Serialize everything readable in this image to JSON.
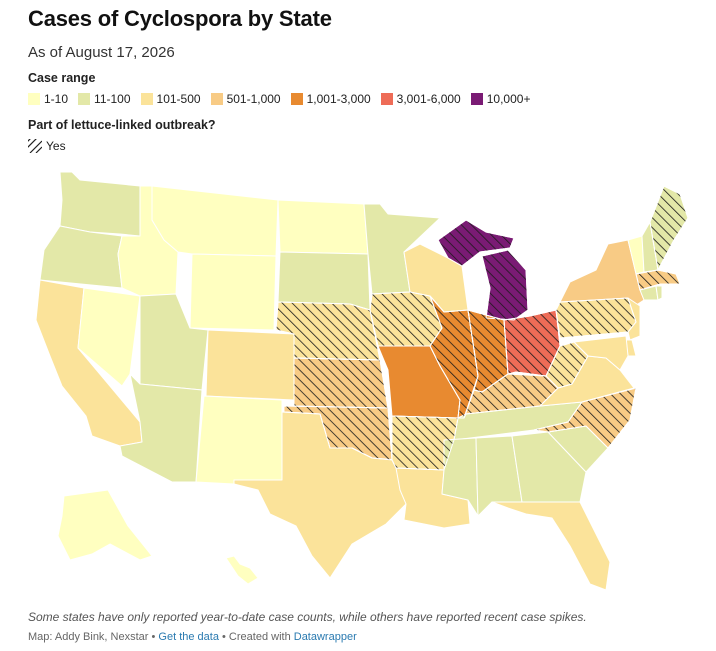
{
  "title": "Cases of Cyclospora by State",
  "subtitle": "As of August 17, 2026",
  "legend": {
    "case_range_title": "Case range",
    "ranges": [
      {
        "label": "1-10",
        "color": "#ffffc0"
      },
      {
        "label": "11-100",
        "color": "#e3e8a8"
      },
      {
        "label": "101-500",
        "color": "#fbe39a"
      },
      {
        "label": "501-1,000",
        "color": "#f8cb85"
      },
      {
        "label": "1,001-3,000",
        "color": "#e88a30"
      },
      {
        "label": "3,001-6,000",
        "color": "#ee6c57"
      },
      {
        "label": "10,000+",
        "color": "#7a1b74"
      }
    ],
    "outbreak_title": "Part of lettuce-linked outbreak?",
    "outbreak_yes": "Yes"
  },
  "note": "Some states have only reported year-to-date case counts, while others have reported recent case spikes.",
  "credit": {
    "source": "Map: Addy Bink, Nexstar",
    "sep1": " • ",
    "data_link": "Get the data",
    "sep2": " • Created with ",
    "tool_link": "Datawrapper"
  },
  "map_data": {
    "states": [
      {
        "id": "WA",
        "range": "11-100",
        "outbreak": false
      },
      {
        "id": "OR",
        "range": "11-100",
        "outbreak": false
      },
      {
        "id": "CA",
        "range": "101-500",
        "outbreak": false
      },
      {
        "id": "NV",
        "range": "1-10",
        "outbreak": false
      },
      {
        "id": "ID",
        "range": "1-10",
        "outbreak": false
      },
      {
        "id": "MT",
        "range": "1-10",
        "outbreak": false
      },
      {
        "id": "WY",
        "range": "1-10",
        "outbreak": false
      },
      {
        "id": "UT",
        "range": "11-100",
        "outbreak": false
      },
      {
        "id": "AZ",
        "range": "11-100",
        "outbreak": false
      },
      {
        "id": "CO",
        "range": "101-500",
        "outbreak": false
      },
      {
        "id": "NM",
        "range": "1-10",
        "outbreak": false
      },
      {
        "id": "ND",
        "range": "1-10",
        "outbreak": false
      },
      {
        "id": "SD",
        "range": "11-100",
        "outbreak": false
      },
      {
        "id": "NE",
        "range": "101-500",
        "outbreak": true
      },
      {
        "id": "KS",
        "range": "501-1,000",
        "outbreak": true
      },
      {
        "id": "OK",
        "range": "501-1,000",
        "outbreak": true
      },
      {
        "id": "TX",
        "range": "101-500",
        "outbreak": false
      },
      {
        "id": "MN",
        "range": "11-100",
        "outbreak": false
      },
      {
        "id": "IA",
        "range": "101-500",
        "outbreak": true
      },
      {
        "id": "MO",
        "range": "1,001-3,000",
        "outbreak": false
      },
      {
        "id": "AR",
        "range": "101-500",
        "outbreak": true
      },
      {
        "id": "LA",
        "range": "101-500",
        "outbreak": false
      },
      {
        "id": "WI",
        "range": "101-500",
        "outbreak": false
      },
      {
        "id": "IL",
        "range": "1,001-3,000",
        "outbreak": true
      },
      {
        "id": "MI",
        "range": "10,000+",
        "outbreak": true
      },
      {
        "id": "IN",
        "range": "1,001-3,000",
        "outbreak": true
      },
      {
        "id": "OH",
        "range": "3,001-6,000",
        "outbreak": true
      },
      {
        "id": "KY",
        "range": "501-1,000",
        "outbreak": true
      },
      {
        "id": "TN",
        "range": "11-100",
        "outbreak": false
      },
      {
        "id": "MS",
        "range": "11-100",
        "outbreak": false
      },
      {
        "id": "AL",
        "range": "11-100",
        "outbreak": false
      },
      {
        "id": "GA",
        "range": "11-100",
        "outbreak": false
      },
      {
        "id": "FL",
        "range": "101-500",
        "outbreak": false
      },
      {
        "id": "SC",
        "range": "11-100",
        "outbreak": false
      },
      {
        "id": "NC",
        "range": "501-1,000",
        "outbreak": true
      },
      {
        "id": "VA",
        "range": "101-500",
        "outbreak": false
      },
      {
        "id": "WV",
        "range": "101-500",
        "outbreak": true
      },
      {
        "id": "PA",
        "range": "101-500",
        "outbreak": true
      },
      {
        "id": "NY",
        "range": "501-1,000",
        "outbreak": false
      },
      {
        "id": "NJ",
        "range": "101-500",
        "outbreak": false
      },
      {
        "id": "DE",
        "range": "101-500",
        "outbreak": false
      },
      {
        "id": "MD",
        "range": "101-500",
        "outbreak": false
      },
      {
        "id": "VT",
        "range": "1-10",
        "outbreak": false
      },
      {
        "id": "NH",
        "range": "11-100",
        "outbreak": false
      },
      {
        "id": "ME",
        "range": "11-100",
        "outbreak": true
      },
      {
        "id": "MA",
        "range": "501-1,000",
        "outbreak": true
      },
      {
        "id": "CT",
        "range": "11-100",
        "outbreak": false
      },
      {
        "id": "RI",
        "range": "11-100",
        "outbreak": false
      },
      {
        "id": "AK",
        "range": "1-10",
        "outbreak": false
      },
      {
        "id": "HI",
        "range": "1-10",
        "outbreak": false
      }
    ]
  }
}
